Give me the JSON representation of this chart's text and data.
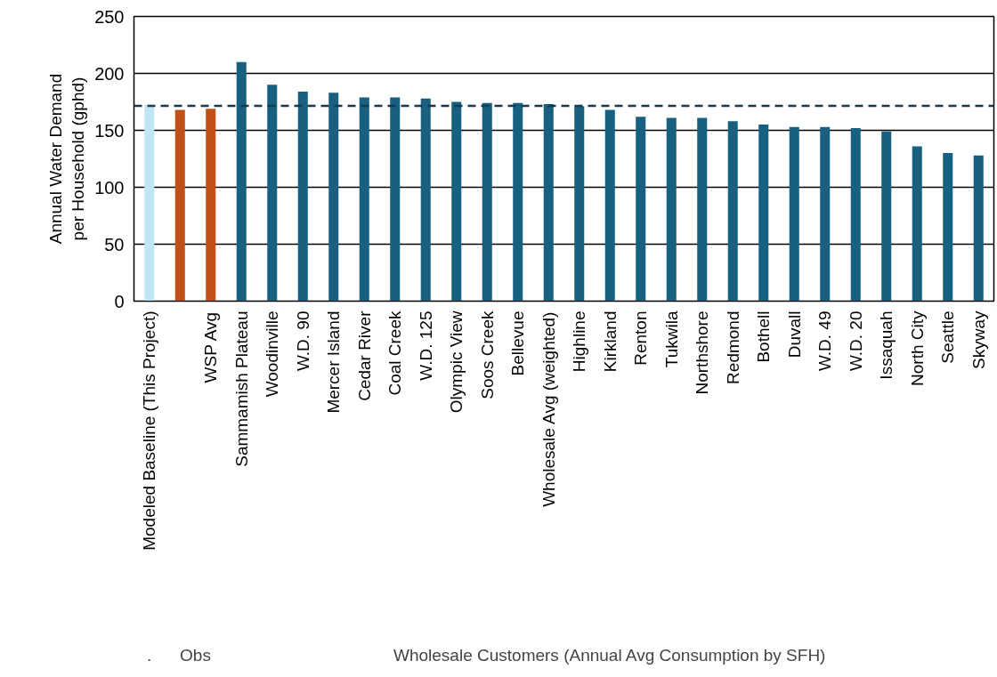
{
  "chart_data": {
    "type": "bar",
    "ylabel": "Annual Water Demand per Household (gphd)",
    "categories": [
      "Modeled Baseline (This Project)",
      null,
      "WSP Avg",
      "Sammamish Plateau",
      "Woodinville",
      "W.D. 90",
      "Mercer Island",
      "Cedar River",
      "Coal Creek",
      "W.D. 125",
      "Olympic View",
      "Soos Creek",
      "Bellevue",
      "Wholesale Avg (weighted)",
      "Highline",
      "Kirkland",
      "Renton",
      "Tukwila",
      "Northshore",
      "Redmond",
      "Bothell",
      "Duvall",
      "W.D. 49",
      "W.D. 20",
      "Issaquah",
      "North City",
      "Seattle",
      "Skyway"
    ],
    "values": [
      172,
      168,
      169,
      210,
      190,
      184,
      183,
      179,
      179,
      178,
      175,
      174,
      174,
      173,
      171,
      168,
      162,
      161,
      161,
      158,
      155,
      153,
      153,
      152,
      149,
      136,
      130,
      128
    ],
    "colors": [
      "#c2e5f5",
      "#c05018",
      "#c05018",
      "#17607f",
      "#17607f",
      "#17607f",
      "#17607f",
      "#17607f",
      "#17607f",
      "#17607f",
      "#17607f",
      "#17607f",
      "#17607f",
      "#17607f",
      "#17607f",
      "#17607f",
      "#17607f",
      "#17607f",
      "#17607f",
      "#17607f",
      "#17607f",
      "#17607f",
      "#17607f",
      "#17607f",
      "#17607f",
      "#17607f",
      "#17607f",
      "#17607f"
    ],
    "ylim": [
      0,
      250
    ],
    "yticks": [
      0,
      50,
      100,
      150,
      200,
      250
    ],
    "grid": "y",
    "ref_lines": [
      {
        "axis": "y",
        "value": 171.5,
        "color": "#17394f",
        "line_style": "dashed"
      }
    ],
    "annotations": [
      ".",
      "Obs",
      "Wholesale Customers (Annual Avg Consumption by SFH)"
    ]
  }
}
